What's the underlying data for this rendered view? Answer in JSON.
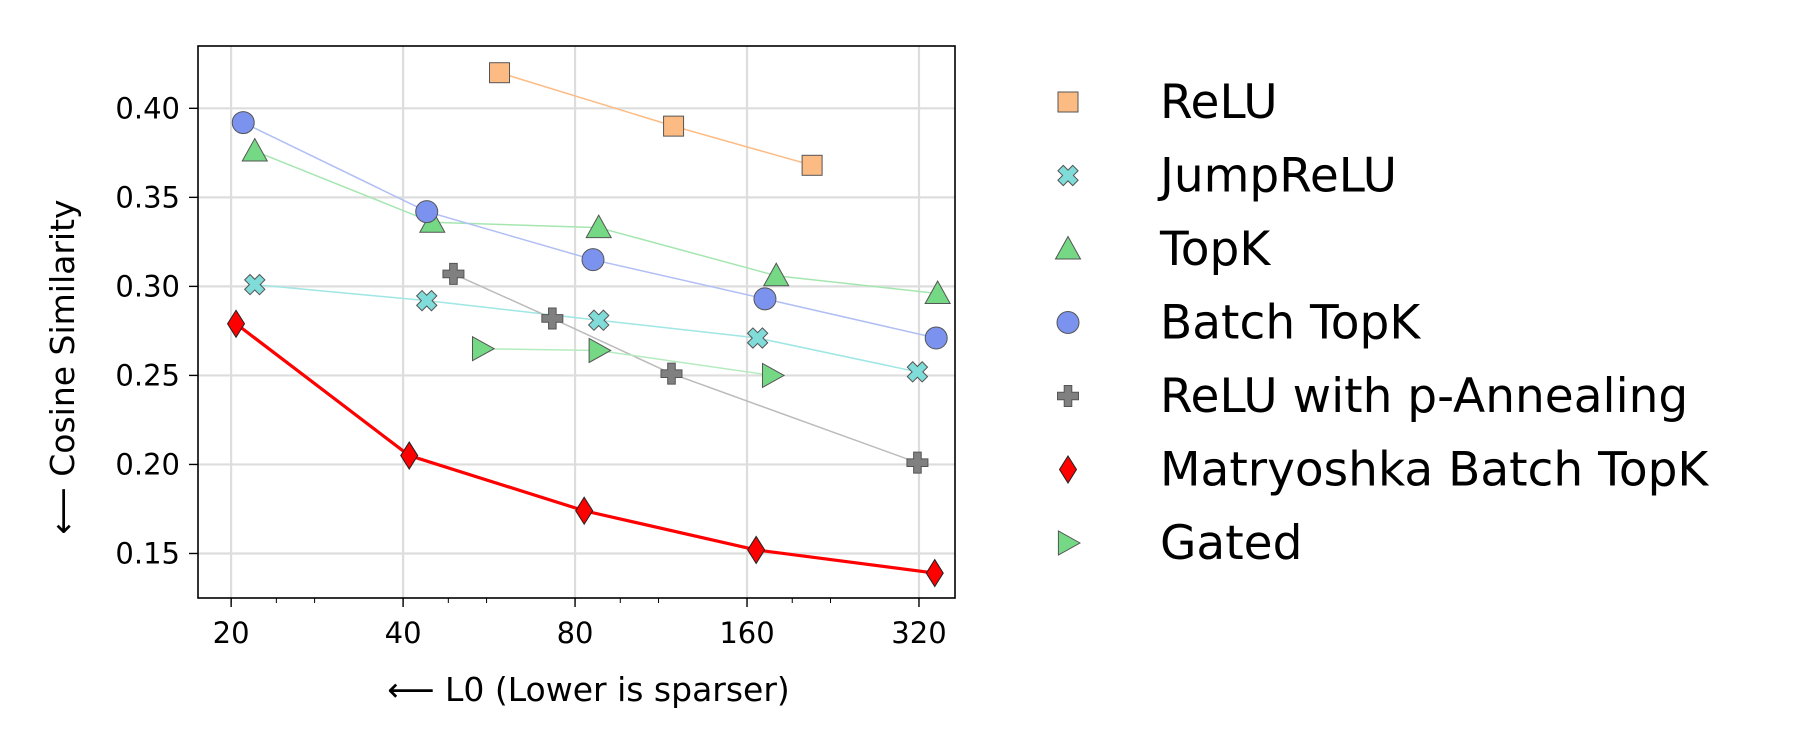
{
  "chart_data": {
    "type": "scatter",
    "title": "",
    "xlabel": "⟵ L0 (Lower is sparser)",
    "ylabel": "⟵ Cosine Similarity",
    "xscale": "log2",
    "xlim": [
      17.5,
      370
    ],
    "ylim": [
      0.125,
      0.435
    ],
    "xticks": [
      20,
      40,
      80,
      160,
      320
    ],
    "xtick_labels": [
      "20",
      "40",
      "80",
      "160",
      "320"
    ],
    "yticks": [
      0.15,
      0.2,
      0.25,
      0.3,
      0.35,
      0.4
    ],
    "ytick_labels": [
      "0.15",
      "0.20",
      "0.25",
      "0.30",
      "0.35",
      "0.40"
    ],
    "grid": true,
    "legend_position": "right, outside plot",
    "series": [
      {
        "name": "ReLU",
        "marker": "square",
        "color": "#fdbb84",
        "line_color": "#fdbb84",
        "line_width": 1.5,
        "x": [
          59,
          119,
          208
        ],
        "y": [
          0.42,
          0.39,
          0.368
        ]
      },
      {
        "name": "JumpReLU",
        "marker": "x-thick",
        "color": "#7fdcd9",
        "line_color": "#9fe6e4",
        "line_width": 1.5,
        "x": [
          22,
          44,
          88,
          167,
          318
        ],
        "y": [
          0.301,
          0.292,
          0.281,
          0.271,
          0.252
        ]
      },
      {
        "name": "TopK",
        "marker": "triangle-up",
        "color": "#74d884",
        "line_color": "#a5e6b0",
        "line_width": 1.5,
        "x": [
          22,
          45,
          88,
          180,
          345
        ],
        "y": [
          0.376,
          0.336,
          0.333,
          0.306,
          0.296
        ]
      },
      {
        "name": "Batch TopK",
        "marker": "circle",
        "color": "#7b93ee",
        "line_color": "#b0bef4",
        "line_width": 1.5,
        "x": [
          21,
          44,
          86,
          172,
          343
        ],
        "y": [
          0.392,
          0.342,
          0.315,
          0.293,
          0.271
        ]
      },
      {
        "name": "ReLU with p-Annealing",
        "marker": "plus-thick",
        "color": "#808080",
        "line_color": "#bbbbbb",
        "line_width": 1.5,
        "x": [
          49,
          73,
          118,
          318
        ],
        "y": [
          0.307,
          0.282,
          0.251,
          0.201
        ]
      },
      {
        "name": "Matryoshka Batch TopK",
        "marker": "diamond",
        "color": "#ff0000",
        "line_color": "#ff0000",
        "line_width": 3.2,
        "x": [
          20.4,
          41,
          83,
          166,
          341
        ],
        "y": [
          0.279,
          0.205,
          0.174,
          0.152,
          0.139
        ]
      },
      {
        "name": "Gated",
        "marker": "triangle-right",
        "color": "#74d884",
        "line_color": "#b5ecbf",
        "line_width": 1.5,
        "x": [
          55,
          88,
          177
        ],
        "y": [
          0.265,
          0.264,
          0.25
        ]
      }
    ]
  }
}
